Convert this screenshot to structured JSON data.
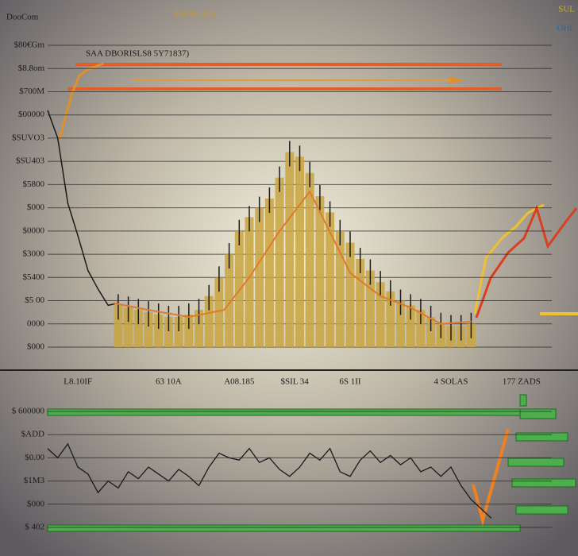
{
  "chart_data": [
    {
      "type": "bar",
      "title": "DooCom",
      "subtitle": "$SUNe 1A)",
      "corner_labels": [
        "SUL",
        "OHL"
      ],
      "annotation": "SAA DBORISLS8 5Y71837)",
      "color": "#c9a43f",
      "xlim": [
        0,
        100
      ],
      "xticks": [
        {
          "value": 6,
          "label": "L8.10IF"
        },
        {
          "value": 24,
          "label": "63 10A"
        },
        {
          "value": 38,
          "label": "A08.185"
        },
        {
          "value": 49,
          "label": "$SIL 34"
        },
        {
          "value": 60,
          "label": "6S 1II"
        },
        {
          "value": 80,
          "label": "4 SOLAS"
        },
        {
          "value": 94,
          "label": "177 ZADS"
        }
      ],
      "ylim": [
        0,
        13
      ],
      "yticks": [
        {
          "value": 0,
          "label": "$000"
        },
        {
          "value": 1,
          "label": "0000"
        },
        {
          "value": 2,
          "label": "$5 00"
        },
        {
          "value": 3,
          "label": "$5400"
        },
        {
          "value": 4,
          "label": "$3000"
        },
        {
          "value": 5,
          "label": "$0000"
        },
        {
          "value": 6,
          "label": "$000"
        },
        {
          "value": 7,
          "label": "$5800"
        },
        {
          "value": 8,
          "label": "$SU403"
        },
        {
          "value": 9,
          "label": "$SUVO3"
        },
        {
          "value": 10,
          "label": "$00000"
        },
        {
          "value": 11,
          "label": "$700M"
        },
        {
          "value": 12,
          "label": "$8.8om"
        },
        {
          "value": 13,
          "label": "$80€Gm"
        }
      ],
      "grid": true,
      "x": [
        14,
        16,
        18,
        20,
        22,
        24,
        26,
        28,
        30,
        32,
        34,
        36,
        38,
        40,
        42,
        44,
        46,
        48,
        50,
        52,
        54,
        56,
        58,
        60,
        62,
        64,
        66,
        68,
        70,
        72,
        74,
        76,
        78,
        80,
        82,
        84
      ],
      "values": [
        1.8,
        1.7,
        1.6,
        1.5,
        1.4,
        1.3,
        1.3,
        1.4,
        1.6,
        2.2,
        3,
        4,
        5,
        5.6,
        6,
        6.4,
        7.3,
        8.4,
        8.2,
        7.5,
        6.5,
        5.8,
        5,
        4.5,
        3.8,
        3.3,
        2.8,
        2.4,
        2,
        1.8,
        1.6,
        1.3,
        1,
        0.9,
        0.9,
        1
      ],
      "line_color": "#1a1a1a",
      "line_x": [
        0,
        2,
        4,
        6,
        8,
        10,
        12,
        14
      ],
      "line_values": [
        10.2,
        9,
        6.2,
        4.8,
        3.3,
        2.5,
        1.8,
        1.9
      ],
      "trend_color": "#e07a2a",
      "trend_x": [
        13,
        20,
        28,
        35,
        40,
        46,
        52,
        60,
        66,
        72,
        78,
        84
      ],
      "trend": [
        1.9,
        1.6,
        1.3,
        1.6,
        3,
        5,
        6.7,
        3.2,
        2.2,
        1.7,
        1.0,
        1.1
      ]
    },
    {
      "type": "line",
      "color": "#1a1a1a",
      "xlim": [
        0,
        100
      ],
      "ylim": [
        0,
        5
      ],
      "yticks": [
        {
          "value": 0,
          "label": "$ 402"
        },
        {
          "value": 1,
          "label": "$000"
        },
        {
          "value": 2,
          "label": "$1M3"
        },
        {
          "value": 3,
          "label": "$0.00"
        },
        {
          "value": 4,
          "label": "$ADD"
        },
        {
          "value": 5,
          "label": "$ 600000"
        }
      ],
      "grid": true,
      "x": [
        0,
        2,
        4,
        6,
        8,
        10,
        12,
        14,
        16,
        18,
        20,
        22,
        24,
        26,
        28,
        30,
        32,
        34,
        36,
        38,
        40,
        42,
        44,
        46,
        48,
        50,
        52,
        54,
        56,
        58,
        60,
        62,
        64,
        66,
        68,
        70,
        72,
        74,
        76,
        78,
        80,
        82,
        84,
        86,
        88
      ],
      "values": [
        3.4,
        3.0,
        3.6,
        2.6,
        2.3,
        1.5,
        2.0,
        1.7,
        2.4,
        2.1,
        2.6,
        2.3,
        2.0,
        2.5,
        2.2,
        1.8,
        2.6,
        3.2,
        3.0,
        2.9,
        3.4,
        2.8,
        3.0,
        2.5,
        2.2,
        2.6,
        3.2,
        2.9,
        3.4,
        2.4,
        2.2,
        2.9,
        3.3,
        2.8,
        3.1,
        2.7,
        3.0,
        2.4,
        2.6,
        2.2,
        2.6,
        1.8,
        1.2,
        0.8,
        0.4
      ]
    }
  ]
}
